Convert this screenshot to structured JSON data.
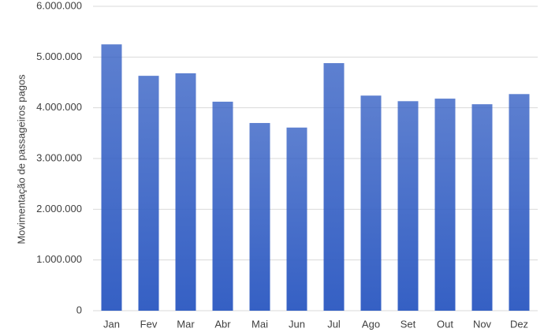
{
  "chart_data": {
    "type": "bar",
    "y_label": "Movimentação de passageiros pagos",
    "categories": [
      "Jan",
      "Fev",
      "Mar",
      "Abr",
      "Mai",
      "Jun",
      "Jul",
      "Ago",
      "Set",
      "Out",
      "Nov",
      "Dez"
    ],
    "values": [
      5250000,
      4630000,
      4680000,
      4120000,
      3700000,
      3610000,
      4880000,
      4240000,
      4130000,
      4180000,
      4070000,
      4270000
    ],
    "color": "#3560c4",
    "ylim": [
      0,
      6000000
    ],
    "yticks": [
      0,
      {
        "value": 1000000,
        "label": "1.000.000"
      },
      {
        "value": 2000000,
        "label": "2.000.000"
      },
      {
        "value": 3000000,
        "label": "3.000.000"
      },
      {
        "value": 4000000,
        "label": "4.000.000"
      },
      {
        "value": 5000000,
        "label": "5.000.000"
      },
      {
        "value": 6000000,
        "label": "6.000.000"
      }
    ],
    "grid": true
  }
}
